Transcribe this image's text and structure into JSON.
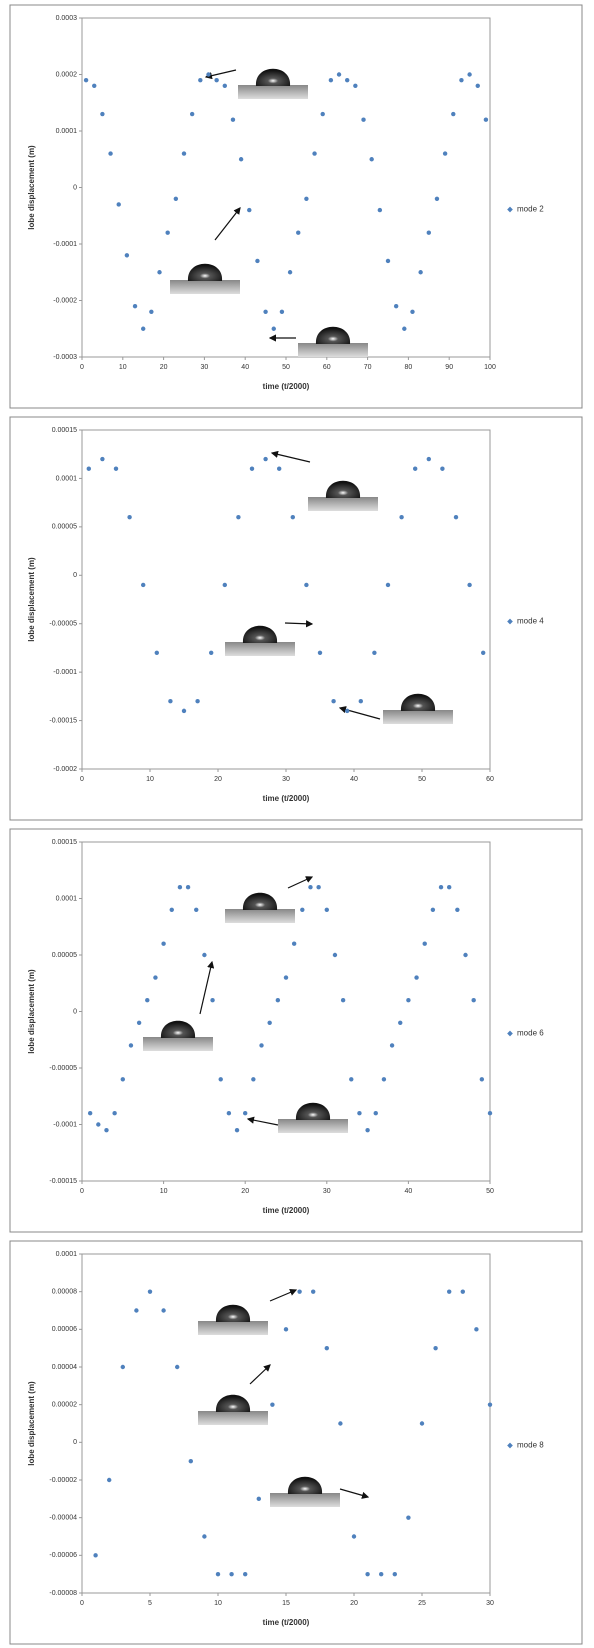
{
  "chart_data": [
    {
      "type": "scatter",
      "x_label": "time (t/2000)",
      "y_label": "lobe displacement (m)",
      "x": [
        1,
        3,
        5,
        7,
        9,
        11,
        13,
        15,
        17,
        19,
        21,
        23,
        25,
        27,
        29,
        31,
        33,
        35,
        37,
        39,
        41,
        43,
        45,
        47,
        49,
        51,
        53,
        55,
        57,
        59,
        61,
        63,
        65,
        67,
        69,
        71,
        73,
        75,
        77,
        79,
        81,
        83,
        85,
        87,
        89,
        91,
        93,
        95,
        97,
        99
      ],
      "series": [
        {
          "name": "mode 2",
          "color": "#4f81bd",
          "values": [
            0.00019,
            0.00018,
            0.00013,
            6e-05,
            -3e-05,
            -0.00012,
            -0.00021,
            -0.00025,
            -0.00022,
            -0.00015,
            -8e-05,
            -2e-05,
            6e-05,
            0.00013,
            0.00019,
            0.0002,
            0.00019,
            0.00018,
            0.00012,
            5e-05,
            -4e-05,
            -0.00013,
            -0.00022,
            -0.00025,
            -0.00022,
            -0.00015,
            -8e-05,
            -2e-05,
            6e-05,
            0.00013,
            0.00019,
            0.0002,
            0.00019,
            0.00018,
            0.00012,
            5e-05,
            -4e-05,
            -0.00013,
            -0.00021,
            -0.00025,
            -0.00022,
            -0.00015,
            -8e-05,
            -2e-05,
            6e-05,
            0.00013,
            0.00019,
            0.0002,
            0.00018,
            0.00012
          ]
        }
      ],
      "xlim": [
        0,
        100
      ],
      "xticks": [
        0,
        10,
        20,
        30,
        40,
        50,
        60,
        70,
        80,
        90,
        100
      ],
      "ylim": [
        -0.0003,
        0.0003
      ],
      "yticks": [
        0.0003,
        0.0002,
        0.0001,
        0,
        -0.0001,
        -0.0002,
        -0.0003
      ]
    },
    {
      "type": "scatter",
      "x_label": "time (t/2000)",
      "y_label": "lobe displacement (m)",
      "x": [
        1,
        3,
        5,
        7,
        9,
        11,
        13,
        15,
        17,
        19,
        21,
        23,
        25,
        27,
        29,
        31,
        33,
        35,
        37,
        39,
        41,
        43,
        45,
        47,
        49,
        51,
        53,
        55,
        57,
        59
      ],
      "series": [
        {
          "name": "mode 4",
          "color": "#4f81bd",
          "values": [
            0.00011,
            0.00012,
            0.00011,
            6e-05,
            -1e-05,
            -8e-05,
            -0.00013,
            -0.00014,
            -0.00013,
            -8e-05,
            -1e-05,
            6e-05,
            0.00011,
            0.00012,
            0.00011,
            6e-05,
            -1e-05,
            -8e-05,
            -0.00013,
            -0.00014,
            -0.00013,
            -8e-05,
            -1e-05,
            6e-05,
            0.00011,
            0.00012,
            0.00011,
            6e-05,
            -1e-05,
            -8e-05
          ]
        }
      ],
      "xlim": [
        0,
        60
      ],
      "xticks": [
        0,
        10,
        20,
        30,
        40,
        50,
        60
      ],
      "ylim": [
        -0.0002,
        0.00015
      ],
      "yticks": [
        0.00015,
        0.0001,
        5e-05,
        0,
        -5e-05,
        -0.0001,
        -0.00015,
        -0.0002
      ]
    },
    {
      "type": "scatter",
      "x_label": "time (t/2000)",
      "y_label": "lobe displacement (m)",
      "x": [
        1,
        2,
        3,
        4,
        5,
        6,
        7,
        8,
        9,
        10,
        11,
        12,
        13,
        14,
        15,
        16,
        17,
        18,
        19,
        20,
        21,
        22,
        23,
        24,
        25,
        26,
        27,
        28,
        29,
        30,
        31,
        32,
        33,
        34,
        35,
        36,
        37,
        38,
        39,
        40,
        41,
        42,
        43,
        44,
        45,
        46,
        47,
        48,
        49,
        50
      ],
      "series": [
        {
          "name": "mode 6",
          "color": "#4f81bd",
          "values": [
            -9e-05,
            -0.0001,
            -0.000105,
            -9e-05,
            -6e-05,
            -3e-05,
            -1e-05,
            1e-05,
            3e-05,
            6e-05,
            9e-05,
            0.00011,
            0.00011,
            9e-05,
            5e-05,
            1e-05,
            -6e-05,
            -9e-05,
            -0.000105,
            -9e-05,
            -6e-05,
            -3e-05,
            -1e-05,
            1e-05,
            3e-05,
            6e-05,
            9e-05,
            0.00011,
            0.00011,
            9e-05,
            5e-05,
            1e-05,
            -6e-05,
            -9e-05,
            -0.000105,
            -9e-05,
            -6e-05,
            -3e-05,
            -1e-05,
            1e-05,
            3e-05,
            6e-05,
            9e-05,
            0.00011,
            0.00011,
            9e-05,
            5e-05,
            1e-05,
            -6e-05,
            -9e-05
          ]
        }
      ],
      "xlim": [
        0,
        50
      ],
      "xticks": [
        0,
        10,
        20,
        30,
        40,
        50
      ],
      "ylim": [
        -0.00015,
        0.00015
      ],
      "yticks": [
        0.00015,
        0.0001,
        5e-05,
        0,
        -5e-05,
        -0.0001,
        -0.00015
      ]
    },
    {
      "type": "scatter",
      "x_label": "time (t/2000)",
      "y_label": "lobe displacement (m)",
      "x": [
        1,
        2,
        3,
        4,
        5,
        6,
        7,
        8,
        9,
        10,
        11,
        12,
        13,
        14,
        15,
        16,
        17,
        18,
        19,
        20,
        21,
        22,
        23,
        24,
        25,
        26,
        27,
        28,
        29,
        30
      ],
      "series": [
        {
          "name": "mode 8",
          "color": "#4f81bd",
          "values": [
            -6e-05,
            -2e-05,
            4e-05,
            7e-05,
            8e-05,
            7e-05,
            4e-05,
            -1e-05,
            -5e-05,
            -7e-05,
            -7e-05,
            -7e-05,
            -3e-05,
            2e-05,
            6e-05,
            8e-05,
            8e-05,
            5e-05,
            1e-05,
            -5e-05,
            -7e-05,
            -7e-05,
            -7e-05,
            -4e-05,
            1e-05,
            5e-05,
            8e-05,
            8e-05,
            6e-05,
            2e-05
          ]
        }
      ],
      "xlim": [
        0,
        30
      ],
      "xticks": [
        0,
        5,
        10,
        15,
        20,
        25,
        30
      ],
      "ylim": [
        -8e-05,
        0.0001
      ],
      "yticks": [
        0.0001,
        8e-05,
        6e-05,
        4e-05,
        2e-05,
        0,
        -2e-05,
        -4e-05,
        -6e-05,
        -8e-05
      ]
    }
  ]
}
